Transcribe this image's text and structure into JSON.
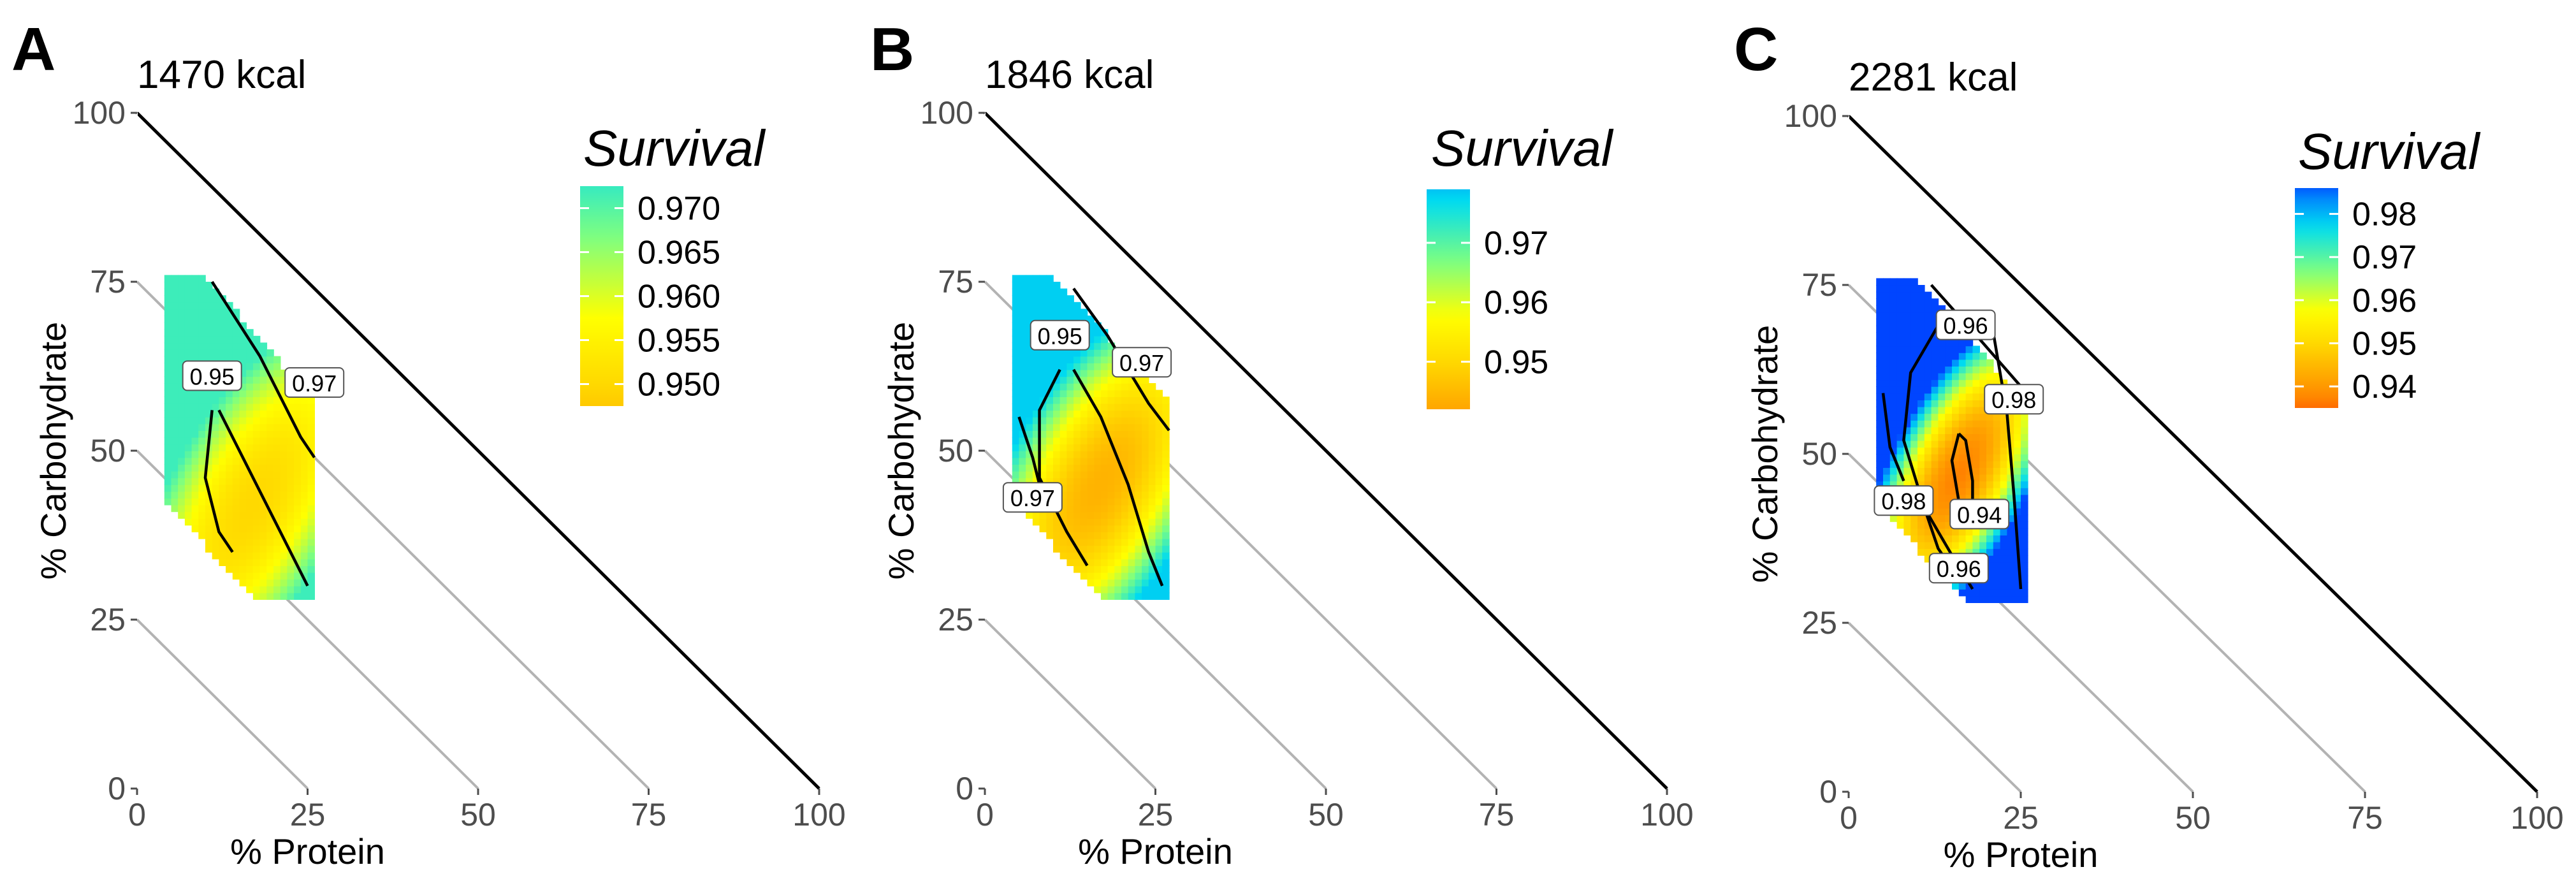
{
  "figure": {
    "legend_title": "Survival",
    "x_axis_label": "% Protein",
    "y_axis_label": "% Carbohydrate",
    "ticks": [
      "0",
      "25",
      "50",
      "75",
      "100"
    ]
  },
  "chart_data": [
    {
      "type": "heatmap",
      "panel": "A",
      "title": "1470 kcal",
      "xlabel": "% Protein",
      "ylabel": "% Carbohydrate",
      "xlim": [
        0,
        100
      ],
      "ylim": [
        0,
        100
      ],
      "legend_title": "Survival",
      "legend_breaks": [
        "0.970",
        "0.965",
        "0.960",
        "0.955",
        "0.950"
      ],
      "legend_range": [
        0.9475,
        0.9725
      ],
      "surface": {
        "min": 0.95,
        "max": 0.972,
        "min_at": [
          17,
          42
        ],
        "spread": [
          10,
          24
        ],
        "angle_deg": -28
      },
      "region": [
        [
          4,
          43
        ],
        [
          4,
          76
        ],
        [
          10,
          76
        ],
        [
          26,
          57
        ],
        [
          26,
          28
        ],
        [
          17,
          28
        ]
      ],
      "contour_labels": [
        {
          "text": "0.95",
          "protein": 11,
          "carb": 61
        },
        {
          "text": "0.97",
          "protein": 26,
          "carb": 60
        }
      ],
      "contour_lines": [
        [
          [
            11,
            75
          ],
          [
            18,
            64
          ],
          [
            24,
            52
          ],
          [
            26,
            49
          ]
        ],
        [
          [
            11,
            56
          ],
          [
            10,
            46
          ],
          [
            12,
            38
          ],
          [
            14,
            35
          ]
        ],
        [
          [
            12,
            56
          ],
          [
            16,
            48
          ],
          [
            21,
            38
          ],
          [
            25,
            30
          ]
        ]
      ]
    },
    {
      "type": "heatmap",
      "panel": "B",
      "title": "1846 kcal",
      "xlabel": "% Protein",
      "ylabel": "% Carbohydrate",
      "xlim": [
        0,
        100
      ],
      "ylim": [
        0,
        100
      ],
      "legend_title": "Survival",
      "legend_breaks": [
        "0.97",
        "0.96",
        "0.95"
      ],
      "legend_range": [
        0.942,
        0.979
      ],
      "surface": {
        "min": 0.944,
        "max": 0.978,
        "min_at": [
          17,
          45
        ],
        "spread": [
          11,
          24
        ],
        "angle_deg": -28
      },
      "region": [
        [
          4,
          43
        ],
        [
          4,
          76
        ],
        [
          10,
          76
        ],
        [
          27,
          57
        ],
        [
          27,
          28
        ],
        [
          17,
          28
        ]
      ],
      "contour_labels": [
        {
          "text": "0.95",
          "protein": 11,
          "carb": 67
        },
        {
          "text": "0.97",
          "protein": 23,
          "carb": 63
        },
        {
          "text": "0.97",
          "protein": 7,
          "carb": 43
        }
      ],
      "contour_lines": [
        [
          [
            13,
            74
          ],
          [
            18,
            67
          ],
          [
            24,
            57
          ],
          [
            27,
            53
          ]
        ],
        [
          [
            11,
            62
          ],
          [
            8,
            56
          ],
          [
            8,
            46
          ],
          [
            12,
            38
          ],
          [
            15,
            33
          ]
        ],
        [
          [
            13,
            62
          ],
          [
            17,
            55
          ],
          [
            21,
            45
          ],
          [
            24,
            35
          ],
          [
            26,
            30
          ]
        ],
        [
          [
            5,
            55
          ],
          [
            7,
            49
          ],
          [
            8,
            45
          ]
        ]
      ]
    },
    {
      "type": "heatmap",
      "panel": "C",
      "title": "2281 kcal",
      "xlabel": "% Protein",
      "ylabel": "% Carbohydrate",
      "xlim": [
        0,
        100
      ],
      "ylim": [
        0,
        100
      ],
      "legend_title": "Survival",
      "legend_breaks": [
        "0.98",
        "0.97",
        "0.96",
        "0.95",
        "0.94"
      ],
      "legend_range": [
        0.935,
        0.986
      ],
      "surface": {
        "min": 0.937,
        "max": 0.987,
        "min_at": [
          16,
          47
        ],
        "spread": [
          8,
          20
        ],
        "angle_deg": -26
      },
      "region": [
        [
          4,
          43
        ],
        [
          4,
          76
        ],
        [
          10,
          76
        ],
        [
          26,
          57
        ],
        [
          26,
          28
        ],
        [
          17,
          28
        ]
      ],
      "contour_labels": [
        {
          "text": "0.96",
          "protein": 17,
          "carb": 69
        },
        {
          "text": "0.98",
          "protein": 24,
          "carb": 58
        },
        {
          "text": "0.98",
          "protein": 8,
          "carb": 43
        },
        {
          "text": "0.94",
          "protein": 19,
          "carb": 41
        },
        {
          "text": "0.96",
          "protein": 16,
          "carb": 33
        }
      ],
      "contour_lines": [
        [
          [
            13,
            69
          ],
          [
            9,
            62
          ],
          [
            8,
            52
          ],
          [
            11,
            42
          ],
          [
            15,
            35
          ],
          [
            18,
            30
          ]
        ],
        [
          [
            21,
            68
          ],
          [
            23,
            56
          ],
          [
            24,
            44
          ],
          [
            25,
            30
          ]
        ],
        [
          [
            16,
            53
          ],
          [
            15,
            49
          ],
          [
            16,
            43
          ],
          [
            18,
            41
          ],
          [
            18,
            46
          ],
          [
            17,
            52
          ],
          [
            16,
            53
          ]
        ],
        [
          [
            5,
            59
          ],
          [
            6,
            51
          ],
          [
            8,
            46
          ]
        ],
        [
          [
            12,
            75
          ],
          [
            19,
            67
          ],
          [
            25,
            60
          ]
        ],
        [
          [
            11,
            42
          ],
          [
            13,
            36
          ],
          [
            15,
            33
          ]
        ]
      ]
    }
  ]
}
